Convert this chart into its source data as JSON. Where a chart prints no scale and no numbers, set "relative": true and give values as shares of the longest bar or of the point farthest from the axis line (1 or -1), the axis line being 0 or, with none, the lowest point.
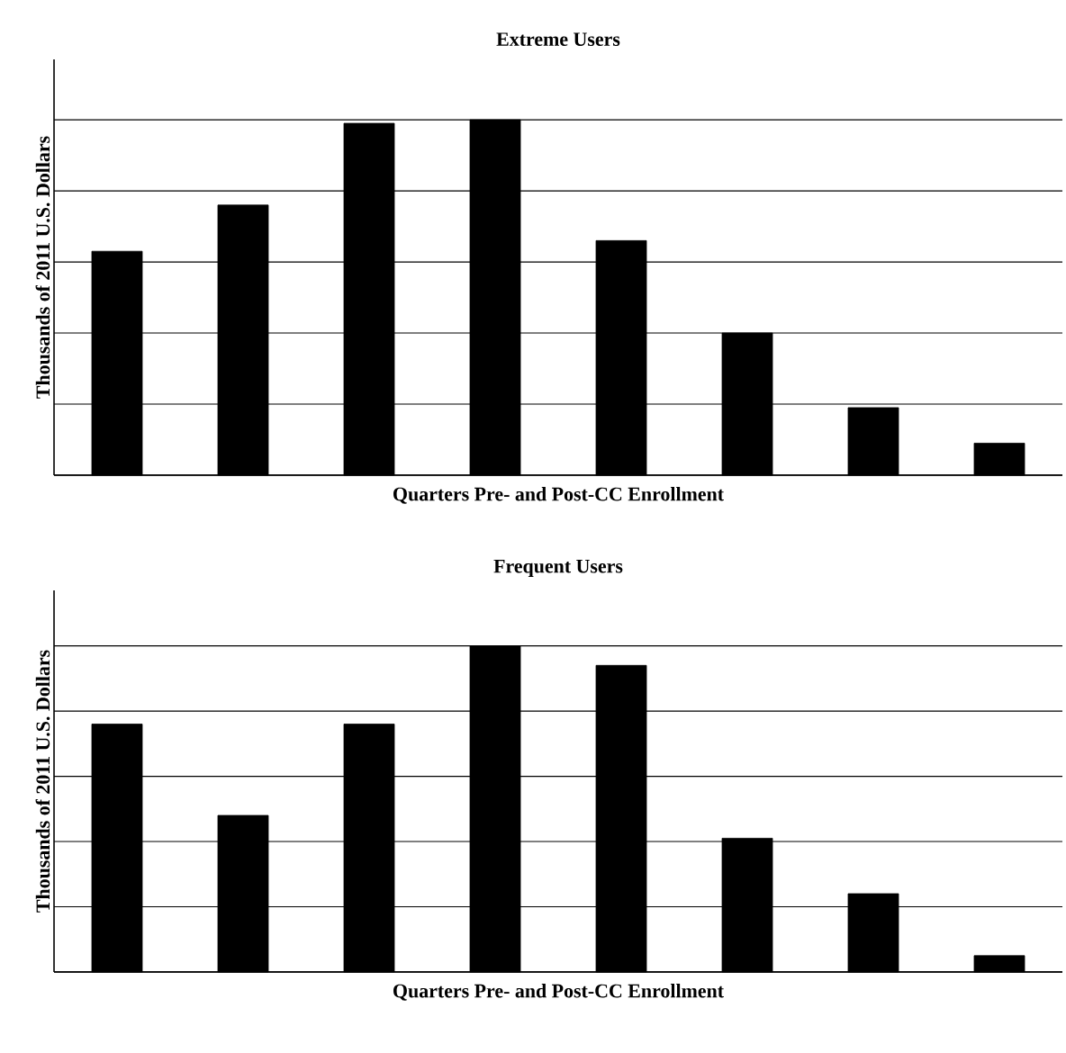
{
  "chart_data": [
    {
      "type": "bar",
      "title": "Extreme Users",
      "xlabel": "Quarters Pre- and Post-CC Enrollment",
      "ylabel": "Thousands of 2011 U.S. Dollars",
      "categories": [
        null,
        null,
        null,
        null,
        null,
        null,
        null,
        null
      ],
      "values": [
        0.63,
        0.76,
        0.99,
        1,
        0.66,
        0.4,
        0.19,
        0.09
      ],
      "color": "#000000",
      "relative": true,
      "grid": "y"
    },
    {
      "type": "bar",
      "title": "Frequent Users",
      "xlabel": "Quarters Pre- and Post-CC Enrollment",
      "ylabel": "Thousands of 2011 U.S. Dollars",
      "categories": [
        null,
        null,
        null,
        null,
        null,
        null,
        null,
        null
      ],
      "values": [
        0.76,
        0.48,
        0.76,
        1,
        0.94,
        0.41,
        0.24,
        0.05
      ],
      "color": "#000000",
      "relative": true,
      "grid": "y"
    }
  ]
}
